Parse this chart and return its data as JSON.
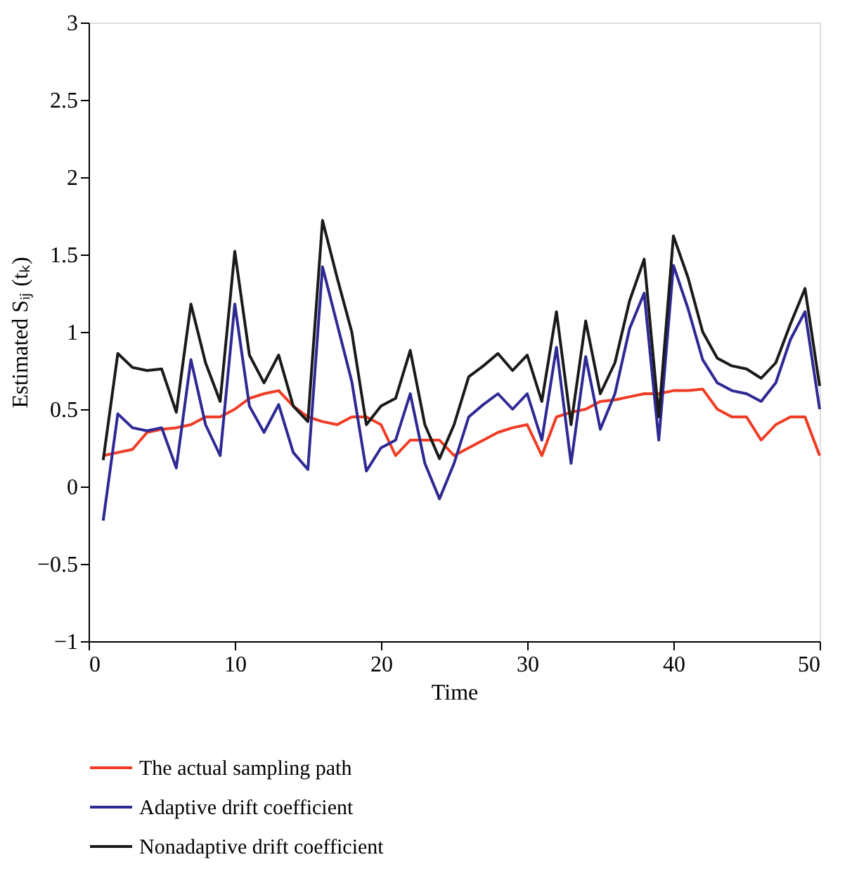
{
  "chart_data": {
    "type": "line",
    "xlabel": "Time",
    "ylabel": "Estimated Sᵢⱼ (tₖ)",
    "x": [
      1,
      2,
      3,
      4,
      5,
      6,
      7,
      8,
      9,
      10,
      11,
      12,
      13,
      14,
      15,
      16,
      17,
      18,
      19,
      20,
      21,
      22,
      23,
      24,
      25,
      26,
      27,
      28,
      29,
      30,
      31,
      32,
      33,
      34,
      35,
      36,
      37,
      38,
      39,
      40,
      41,
      42,
      43,
      44,
      45,
      46,
      47,
      48,
      49,
      50
    ],
    "series": [
      {
        "name": "The actual sampling path",
        "color": "#f03c24",
        "values": [
          0.2,
          0.22,
          0.24,
          0.35,
          0.37,
          0.38,
          0.4,
          0.45,
          0.45,
          0.5,
          0.57,
          0.6,
          0.62,
          0.52,
          0.45,
          0.42,
          0.4,
          0.45,
          0.45,
          0.4,
          0.2,
          0.3,
          0.3,
          0.3,
          0.2,
          0.25,
          0.3,
          0.35,
          0.38,
          0.4,
          0.2,
          0.45,
          0.48,
          0.5,
          0.55,
          0.56,
          0.58,
          0.6,
          0.6,
          0.62,
          0.62,
          0.63,
          0.5,
          0.45,
          0.45,
          0.3,
          0.4,
          0.45,
          0.45,
          0.2
        ]
      },
      {
        "name": "Adaptive drift coefficient",
        "color": "#2e2a94",
        "values": [
          -0.22,
          0.47,
          0.38,
          0.36,
          0.38,
          0.12,
          0.82,
          0.4,
          0.2,
          1.18,
          0.52,
          0.35,
          0.53,
          0.22,
          0.11,
          1.42,
          1.05,
          0.68,
          0.1,
          0.25,
          0.3,
          0.6,
          0.15,
          -0.08,
          0.15,
          0.45,
          0.53,
          0.6,
          0.5,
          0.6,
          0.3,
          0.9,
          0.15,
          0.84,
          0.37,
          0.6,
          1.02,
          1.25,
          0.3,
          1.43,
          1.15,
          0.82,
          0.67,
          0.62,
          0.6,
          0.55,
          0.67,
          0.95,
          1.13,
          0.5
        ]
      },
      {
        "name": "Nonadaptive drift coefficient",
        "color": "#1a1a1a",
        "values": [
          0.17,
          0.86,
          0.77,
          0.75,
          0.76,
          0.48,
          1.18,
          0.8,
          0.55,
          1.52,
          0.85,
          0.67,
          0.85,
          0.52,
          0.42,
          1.72,
          1.35,
          1.0,
          0.4,
          0.52,
          0.57,
          0.88,
          0.4,
          0.18,
          0.4,
          0.71,
          0.78,
          0.86,
          0.75,
          0.85,
          0.55,
          1.13,
          0.4,
          1.07,
          0.6,
          0.8,
          1.2,
          1.47,
          0.45,
          1.62,
          1.35,
          1.0,
          0.83,
          0.78,
          0.76,
          0.7,
          0.8,
          1.05,
          1.28,
          0.65
        ]
      }
    ],
    "xlim": [
      0,
      50
    ],
    "xticks": [
      0,
      10,
      20,
      30,
      40,
      50
    ],
    "ylim": [
      -1,
      3
    ],
    "yticks": [
      -1,
      -0.5,
      0,
      0.5,
      1,
      1.5,
      2,
      2.5,
      3
    ],
    "grid": false,
    "legend": "bottom",
    "marker": "none",
    "line_style": "solid"
  }
}
